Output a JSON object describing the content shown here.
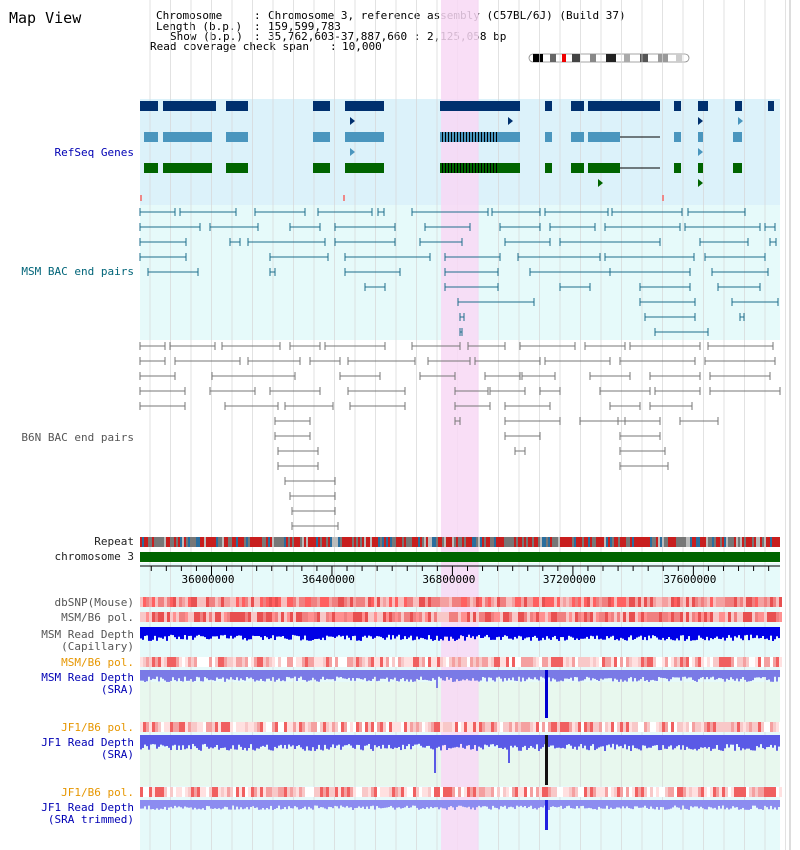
{
  "page": {
    "title": "Map View"
  },
  "info": {
    "chromosome_label": "Chromosome",
    "chromosome_value": "Chromosome 3, reference assembly (C57BL/6J) (Build 37)",
    "length_label": "Length (b.p.)",
    "length_value": "159,599,783",
    "show_label": "Show (b.p.)",
    "show_value": "35,762,603-37,887,660 : 2,125,058 bp",
    "coverage_label": "Read coverage check span",
    "coverage_value": "10,000"
  },
  "tracks": {
    "refseq": "RefSeq Genes",
    "msm_bac": "MSM BAC end pairs",
    "b6n_bac": "B6N BAC end pairs",
    "repeat": "Repeat",
    "chromosome": "chromosome 3",
    "dbsnp": "dbSNP(Mouse)",
    "msm_b6_pol_1": "MSM/B6 pol.",
    "msm_depth_cap_1": "MSM Read Depth",
    "msm_depth_cap_2": "(Capillary)",
    "msm_b6_pol_2": "MSM/B6 pol.",
    "msm_depth_sra_1": "MSM Read Depth",
    "msm_depth_sra_2": "(SRA)",
    "jf1_b6_pol_1": "JF1/B6 pol.",
    "jf1_depth_sra_1": "JF1 Read Depth",
    "jf1_depth_sra_2": "(SRA)",
    "jf1_b6_pol_2": "JF1/B6 pol.",
    "jf1_depth_trim_1": "JF1 Read Depth",
    "jf1_depth_trim_2": "(SRA trimmed)"
  },
  "axis": {
    "start": 35762603,
    "end": 37887660,
    "ticks": [
      {
        "label": "36000000",
        "value": 36000000
      },
      {
        "label": "36400000",
        "value": 36400000
      },
      {
        "label": "36800000",
        "value": 36800000
      },
      {
        "label": "37200000",
        "value": 37200000
      },
      {
        "label": "37600000",
        "value": 37600000
      }
    ]
  },
  "highlight": {
    "start": 36762000,
    "end": 36887000
  },
  "colors": {
    "refseq_bg": "#dcf2fa",
    "bac_bg": "#e6fafa",
    "depth_bg": "#e8f8ee",
    "highlight": "#f8d8f4",
    "gene_dark": "#00306e",
    "gene_mid": "#4a96be",
    "gene_green": "#006400",
    "msm_bac": "#1e6e8c",
    "b6n_bac": "#777777",
    "chrom_bar": "#006400",
    "msm_depth_cap": "#0000e6",
    "msm_depth_sra": "#7a7ae6",
    "jf1_depth_sra": "#5a5ae6",
    "jf1_depth_trim": "#8c8cf0"
  },
  "icons": {
    "ideogram": "chromosome-ideogram-icon"
  }
}
